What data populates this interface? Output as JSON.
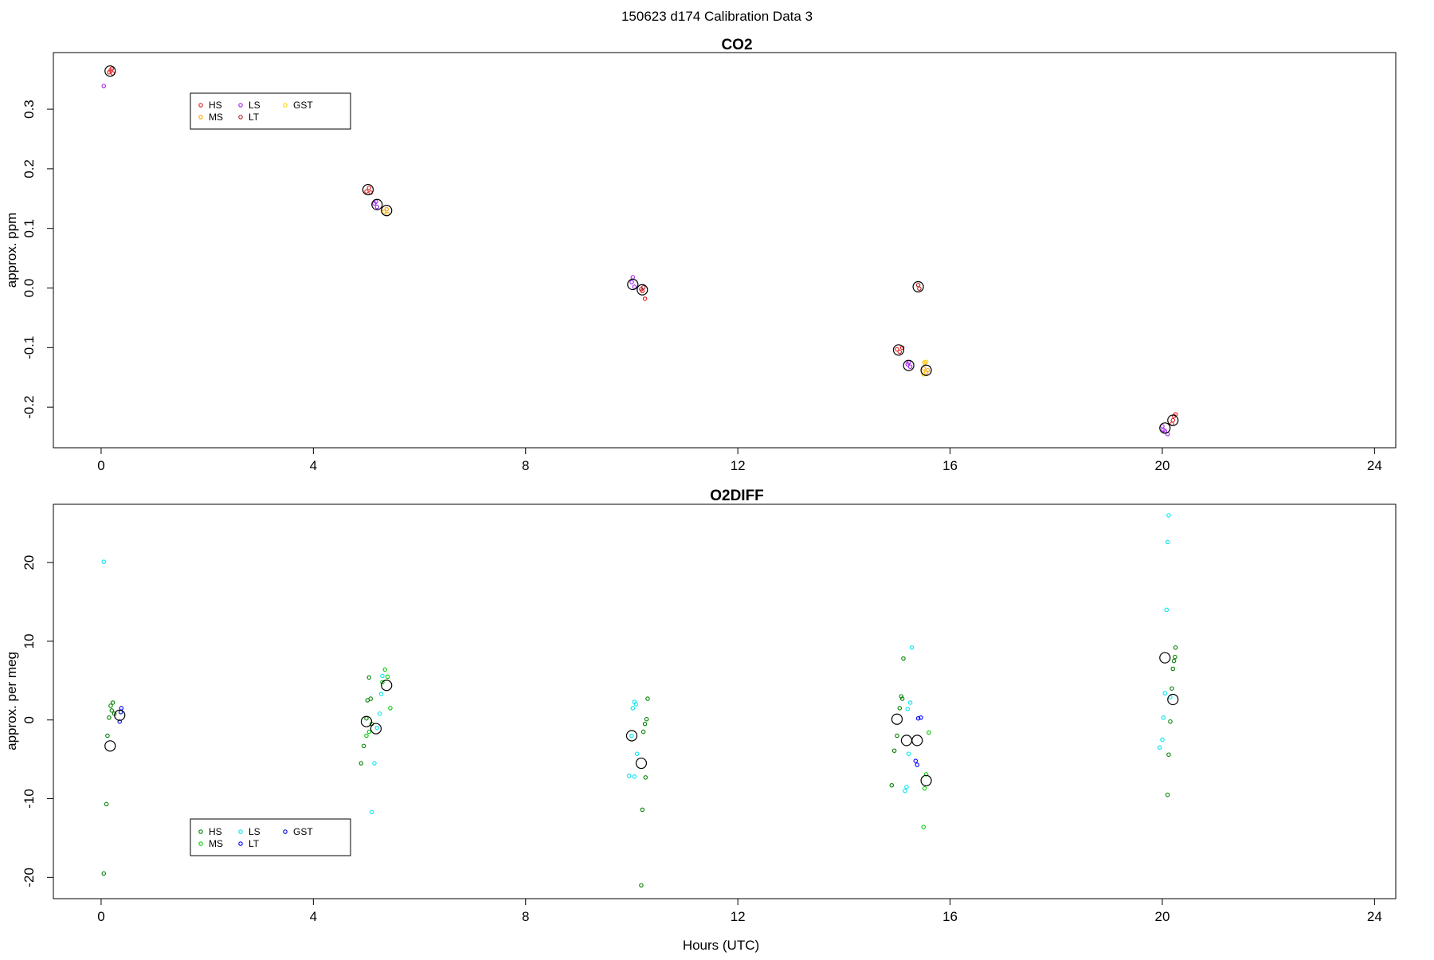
{
  "figure": {
    "title": "150623   d174   Calibration Data 3"
  },
  "colors": {
    "HS": "#e41a1c",
    "MS": "#ffa500",
    "LS": "#a020f0",
    "LT": "#b22222",
    "GST": "#ffd700",
    "o2_HS": "#008000",
    "o2_MS": "#00cc00",
    "o2_LS": "#00e5ee",
    "o2_LT": "#0000ff",
    "o2_GST": "#0000cd",
    "mean": "#000000"
  },
  "chart_data": [
    {
      "type": "scatter",
      "title": "CO2",
      "xlabel": "",
      "ylabel": "approx. ppm",
      "xlim": [
        -0.9,
        24.4
      ],
      "ylim": [
        -0.268,
        0.395
      ],
      "xticks": [
        "0",
        "4",
        "8",
        "12",
        "16",
        "20",
        "24"
      ],
      "xtick_values": [
        0,
        4,
        8,
        12,
        16,
        20,
        24
      ],
      "yticks": [
        "-0.2",
        "-0.1",
        "0.0",
        "0.1",
        "0.2",
        "0.3"
      ],
      "ytick_values": [
        -0.2,
        -0.1,
        0.0,
        0.1,
        0.2,
        0.3
      ],
      "legend": {
        "position": "top-left",
        "entries": [
          "HS",
          "MS",
          "LS",
          "LT",
          "GST"
        ]
      },
      "series": [
        {
          "name": "HS",
          "color": "#e41a1c",
          "points": [
            [
              0.15,
              0.362
            ],
            [
              0.2,
              0.368
            ],
            [
              0.22,
              0.36
            ],
            [
              0.18,
              0.365
            ],
            [
              5.0,
              0.162
            ],
            [
              5.05,
              0.168
            ],
            [
              5.08,
              0.16
            ],
            [
              15.0,
              -0.103
            ],
            [
              15.05,
              -0.107
            ],
            [
              15.1,
              -0.1
            ],
            [
              20.2,
              -0.222
            ],
            [
              20.22,
              -0.215
            ],
            [
              20.25,
              -0.212
            ],
            [
              20.18,
              -0.228
            ],
            [
              10.2,
              -0.005
            ],
            [
              10.25,
              -0.018
            ]
          ]
        },
        {
          "name": "MS",
          "color": "#ffa500",
          "points": [
            [
              5.33,
              0.128
            ],
            [
              5.38,
              0.132
            ],
            [
              5.4,
              0.124
            ],
            [
              15.5,
              -0.135
            ],
            [
              15.55,
              -0.142
            ],
            [
              15.52,
              -0.125
            ],
            [
              15.58,
              -0.138
            ]
          ]
        },
        {
          "name": "LS",
          "color": "#a020f0",
          "points": [
            [
              0.05,
              0.339
            ],
            [
              5.15,
              0.142
            ],
            [
              5.2,
              0.136
            ],
            [
              5.18,
              0.145
            ],
            [
              10.0,
              0.01
            ],
            [
              10.02,
              0.018
            ],
            [
              10.05,
              0.002
            ],
            [
              15.2,
              -0.128
            ],
            [
              15.25,
              -0.132
            ],
            [
              15.22,
              -0.125
            ],
            [
              20.0,
              -0.232
            ],
            [
              20.05,
              -0.24
            ],
            [
              20.1,
              -0.245
            ],
            [
              20.02,
              -0.238
            ]
          ]
        },
        {
          "name": "LT",
          "color": "#b22222",
          "points": [
            [
              10.18,
              -0.002
            ],
            [
              10.22,
              0.001
            ],
            [
              15.4,
              0.005
            ],
            [
              15.42,
              -0.001
            ]
          ]
        },
        {
          "name": "GST",
          "color": "#ffd700",
          "points": [
            [
              15.55,
              -0.124
            ],
            [
              15.5,
              -0.145
            ]
          ]
        }
      ],
      "means": [
        [
          0.17,
          0.364
        ],
        [
          5.03,
          0.165
        ],
        [
          5.2,
          0.14
        ],
        [
          5.38,
          0.13
        ],
        [
          10.02,
          0.006
        ],
        [
          10.2,
          -0.003
        ],
        [
          15.03,
          -0.104
        ],
        [
          15.22,
          -0.13
        ],
        [
          15.4,
          0.002
        ],
        [
          15.55,
          -0.138
        ],
        [
          20.05,
          -0.235
        ],
        [
          20.2,
          -0.222
        ]
      ]
    },
    {
      "type": "scatter",
      "title": "O2DIFF",
      "xlabel": "Hours (UTC)",
      "ylabel": "approx. per meg",
      "xlim": [
        -0.9,
        24.4
      ],
      "ylim": [
        -22.7,
        27.4
      ],
      "xticks": [
        "0",
        "4",
        "8",
        "12",
        "16",
        "20",
        "24"
      ],
      "xtick_values": [
        0,
        4,
        8,
        12,
        16,
        20,
        24
      ],
      "yticks": [
        "-20",
        "-10",
        "0",
        "10",
        "20"
      ],
      "ytick_values": [
        -20,
        -10,
        0,
        10,
        20
      ],
      "legend": {
        "position": "bottom-left",
        "entries": [
          "HS",
          "MS",
          "LS",
          "LT",
          "GST"
        ]
      },
      "series": [
        {
          "name": "HS",
          "color": "#008000",
          "points": [
            [
              0.05,
              -19.5
            ],
            [
              0.1,
              -10.7
            ],
            [
              0.12,
              -2.0
            ],
            [
              0.15,
              0.3
            ],
            [
              0.18,
              1.8
            ],
            [
              0.2,
              1.2
            ],
            [
              0.22,
              2.2
            ],
            [
              0.25,
              0.8
            ],
            [
              4.9,
              -5.5
            ],
            [
              4.95,
              -3.3
            ],
            [
              5.0,
              0.2
            ],
            [
              5.02,
              2.5
            ],
            [
              5.05,
              5.4
            ],
            [
              5.08,
              2.7
            ],
            [
              5.1,
              -0.5
            ],
            [
              10.2,
              -11.4
            ],
            [
              10.18,
              -21.0
            ],
            [
              10.22,
              -1.5
            ],
            [
              10.25,
              -0.5
            ],
            [
              10.28,
              0.1
            ],
            [
              10.3,
              2.7
            ],
            [
              10.26,
              -7.3
            ],
            [
              14.9,
              -8.3
            ],
            [
              14.95,
              -3.9
            ],
            [
              15.0,
              -2.0
            ],
            [
              15.05,
              1.5
            ],
            [
              15.08,
              3.0
            ],
            [
              15.1,
              2.7
            ],
            [
              15.12,
              7.8
            ],
            [
              20.1,
              -9.5
            ],
            [
              20.12,
              -4.4
            ],
            [
              20.15,
              -0.2
            ],
            [
              20.18,
              4.0
            ],
            [
              20.2,
              6.5
            ],
            [
              20.22,
              7.5
            ],
            [
              20.25,
              9.2
            ],
            [
              20.24,
              8.0
            ]
          ]
        },
        {
          "name": "MS",
          "color": "#00cc00",
          "points": [
            [
              5.0,
              -2.0
            ],
            [
              5.05,
              -1.5
            ],
            [
              5.35,
              6.4
            ],
            [
              5.4,
              5.5
            ],
            [
              5.45,
              1.5
            ],
            [
              5.3,
              4.8
            ],
            [
              15.5,
              -13.6
            ],
            [
              15.52,
              -8.7
            ],
            [
              15.55,
              -6.9
            ],
            [
              15.6,
              -1.6
            ]
          ]
        },
        {
          "name": "LS",
          "color": "#00e5ee",
          "points": [
            [
              0.05,
              20.1
            ],
            [
              5.1,
              -11.7
            ],
            [
              5.15,
              -5.5
            ],
            [
              5.2,
              -1.0
            ],
            [
              5.25,
              0.8
            ],
            [
              5.28,
              3.3
            ],
            [
              5.3,
              5.6
            ],
            [
              9.95,
              -7.1
            ],
            [
              10.0,
              -2.0
            ],
            [
              10.02,
              1.5
            ],
            [
              10.05,
              2.3
            ],
            [
              10.08,
              2.0
            ],
            [
              10.1,
              -4.3
            ],
            [
              10.05,
              -7.2
            ],
            [
              15.15,
              -9.0
            ],
            [
              15.18,
              -8.5
            ],
            [
              15.22,
              -4.3
            ],
            [
              15.2,
              1.4
            ],
            [
              15.25,
              2.2
            ],
            [
              15.28,
              9.2
            ],
            [
              19.95,
              -3.5
            ],
            [
              20.0,
              -2.5
            ],
            [
              20.02,
              0.3
            ],
            [
              20.05,
              3.4
            ],
            [
              20.08,
              14.0
            ],
            [
              20.1,
              22.6
            ],
            [
              20.12,
              26.0
            ],
            [
              20.15,
              2.9
            ]
          ]
        },
        {
          "name": "LT",
          "color": "#0000ff",
          "points": [
            [
              0.35,
              -0.2
            ],
            [
              0.38,
              1.5
            ],
            [
              15.35,
              -5.2
            ],
            [
              15.38,
              -5.7
            ],
            [
              15.4,
              0.2
            ],
            [
              15.45,
              0.3
            ]
          ]
        },
        {
          "name": "GST",
          "color": "#0000cd",
          "points": [
            [
              0.37,
              1.0
            ]
          ]
        }
      ],
      "means": [
        [
          0.17,
          -3.3
        ],
        [
          0.35,
          0.6
        ],
        [
          5.0,
          -0.2
        ],
        [
          5.18,
          -1.1
        ],
        [
          5.38,
          4.4
        ],
        [
          10.0,
          -2.0
        ],
        [
          10.18,
          -5.5
        ],
        [
          15.0,
          0.1
        ],
        [
          15.18,
          -2.6
        ],
        [
          15.38,
          -2.6
        ],
        [
          15.55,
          -7.7
        ],
        [
          20.05,
          7.9
        ],
        [
          20.2,
          2.6
        ]
      ]
    }
  ]
}
